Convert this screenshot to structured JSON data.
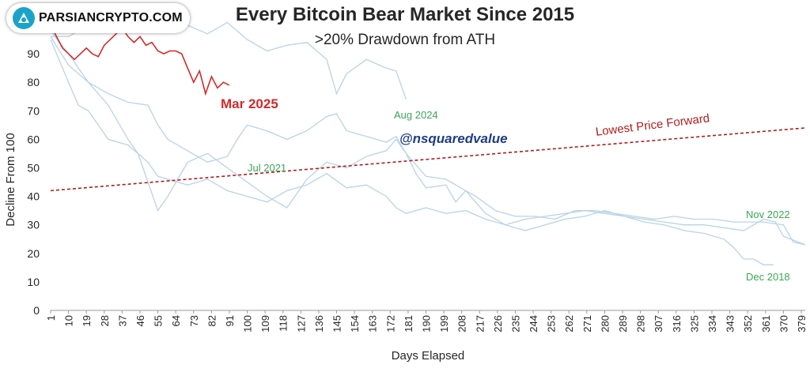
{
  "logo": {
    "text": "PARSIANCRYPTO.COM"
  },
  "chart_data": {
    "type": "line",
    "title": "Every Bitcoin Bear Market Since 2015",
    "subtitle": ">20% Drawdown from ATH",
    "xlabel": "Days Elapsed",
    "ylabel": "Decline From 100",
    "xlim": [
      1,
      381
    ],
    "ylim": [
      0,
      100
    ],
    "yticks": [
      0,
      10,
      20,
      30,
      40,
      50,
      60,
      70,
      80,
      90
    ],
    "xticks": [
      1,
      10,
      19,
      28,
      37,
      46,
      55,
      64,
      73,
      82,
      91,
      100,
      109,
      118,
      127,
      136,
      145,
      154,
      163,
      172,
      181,
      190,
      199,
      208,
      217,
      226,
      235,
      244,
      253,
      262,
      271,
      280,
      289,
      298,
      307,
      316,
      325,
      334,
      343,
      352,
      361,
      370,
      379
    ],
    "grid": false,
    "colors": {
      "history": "#b9d3e6",
      "current": "#d42a2a",
      "trend": "#b01c1c",
      "label_green": "#3aa655",
      "watermark": "#1f3c88"
    },
    "series": [
      {
        "name": "Mar 2025",
        "highlight": true,
        "points": [
          [
            1,
            100
          ],
          [
            4,
            96
          ],
          [
            7,
            92
          ],
          [
            10,
            90
          ],
          [
            13,
            88
          ],
          [
            16,
            90
          ],
          [
            19,
            92
          ],
          [
            22,
            90
          ],
          [
            25,
            89
          ],
          [
            28,
            93
          ],
          [
            31,
            95
          ],
          [
            34,
            97
          ],
          [
            37,
            99
          ],
          [
            40,
            96
          ],
          [
            43,
            94
          ],
          [
            46,
            96
          ],
          [
            49,
            93
          ],
          [
            52,
            94
          ],
          [
            55,
            91
          ],
          [
            58,
            90
          ],
          [
            61,
            91
          ],
          [
            64,
            91
          ],
          [
            67,
            90
          ],
          [
            70,
            85
          ],
          [
            73,
            80
          ],
          [
            76,
            84
          ],
          [
            79,
            76
          ],
          [
            82,
            82
          ],
          [
            85,
            78
          ],
          [
            88,
            80
          ],
          [
            91,
            79
          ]
        ]
      },
      {
        "name": "Aug 2024",
        "points": [
          [
            1,
            96
          ],
          [
            10,
            96
          ],
          [
            20,
            100
          ],
          [
            30,
            104
          ],
          [
            40,
            100
          ],
          [
            50,
            100
          ],
          [
            60,
            104
          ],
          [
            70,
            100
          ],
          [
            80,
            97
          ],
          [
            90,
            101
          ],
          [
            100,
            95
          ],
          [
            110,
            91
          ],
          [
            120,
            93
          ],
          [
            130,
            94
          ],
          [
            140,
            88
          ],
          [
            145,
            76
          ],
          [
            150,
            83
          ],
          [
            160,
            88
          ],
          [
            170,
            85
          ],
          [
            175,
            84
          ],
          [
            180,
            74
          ]
        ]
      },
      {
        "name": "Jul 2021",
        "points": [
          [
            1,
            96
          ],
          [
            10,
            86
          ],
          [
            20,
            80
          ],
          [
            30,
            76
          ],
          [
            40,
            73
          ],
          [
            50,
            72
          ],
          [
            55,
            65
          ],
          [
            60,
            60
          ],
          [
            70,
            56
          ],
          [
            80,
            52
          ],
          [
            90,
            54
          ],
          [
            95,
            60
          ],
          [
            100,
            65
          ],
          [
            110,
            63
          ],
          [
            120,
            60
          ],
          [
            130,
            63
          ],
          [
            140,
            68
          ],
          [
            145,
            69
          ],
          [
            150,
            63
          ],
          [
            160,
            61
          ],
          [
            170,
            59
          ],
          [
            175,
            61
          ],
          [
            180,
            55
          ],
          [
            185,
            48
          ],
          [
            190,
            43
          ],
          [
            200,
            44
          ],
          [
            205,
            38
          ],
          [
            210,
            42
          ],
          [
            215,
            40
          ],
          [
            225,
            35
          ],
          [
            235,
            33
          ],
          [
            245,
            33
          ],
          [
            255,
            32
          ],
          [
            265,
            35
          ],
          [
            275,
            35
          ],
          [
            285,
            34
          ],
          [
            295,
            33
          ],
          [
            305,
            32
          ],
          [
            315,
            33
          ],
          [
            325,
            32
          ],
          [
            335,
            32
          ],
          [
            345,
            31
          ],
          [
            350,
            31
          ],
          [
            360,
            31
          ],
          [
            370,
            30
          ],
          [
            375,
            24
          ],
          [
            381,
            23
          ]
        ]
      },
      {
        "name": "Nov 2022",
        "points": [
          [
            1,
            95
          ],
          [
            10,
            80
          ],
          [
            15,
            72
          ],
          [
            20,
            70
          ],
          [
            30,
            60
          ],
          [
            40,
            58
          ],
          [
            50,
            52
          ],
          [
            55,
            47
          ],
          [
            60,
            46
          ],
          [
            70,
            44
          ],
          [
            80,
            46
          ],
          [
            90,
            42
          ],
          [
            100,
            40
          ],
          [
            110,
            38
          ],
          [
            120,
            42
          ],
          [
            130,
            44
          ],
          [
            140,
            48
          ],
          [
            150,
            43
          ],
          [
            160,
            44
          ],
          [
            170,
            40
          ],
          [
            175,
            36
          ],
          [
            180,
            34
          ],
          [
            190,
            36
          ],
          [
            200,
            34
          ],
          [
            210,
            35
          ],
          [
            220,
            32
          ],
          [
            230,
            30
          ],
          [
            240,
            32
          ],
          [
            250,
            33
          ],
          [
            260,
            34
          ],
          [
            270,
            35
          ],
          [
            280,
            34
          ],
          [
            290,
            33
          ],
          [
            300,
            32
          ],
          [
            310,
            31
          ],
          [
            320,
            30
          ],
          [
            330,
            30
          ],
          [
            340,
            29
          ],
          [
            350,
            28
          ],
          [
            360,
            32
          ],
          [
            366,
            31
          ],
          [
            370,
            26
          ],
          [
            381,
            23
          ]
        ]
      },
      {
        "name": "Dec 2018",
        "points": [
          [
            1,
            98
          ],
          [
            10,
            90
          ],
          [
            20,
            80
          ],
          [
            30,
            72
          ],
          [
            40,
            60
          ],
          [
            45,
            55
          ],
          [
            50,
            45
          ],
          [
            55,
            35
          ],
          [
            60,
            40
          ],
          [
            70,
            52
          ],
          [
            80,
            55
          ],
          [
            90,
            50
          ],
          [
            100,
            45
          ],
          [
            110,
            40
          ],
          [
            120,
            36
          ],
          [
            130,
            46
          ],
          [
            140,
            52
          ],
          [
            150,
            50
          ],
          [
            160,
            54
          ],
          [
            170,
            56
          ],
          [
            175,
            60
          ],
          [
            180,
            55
          ],
          [
            190,
            47
          ],
          [
            200,
            46
          ],
          [
            210,
            42
          ],
          [
            220,
            34
          ],
          [
            230,
            30
          ],
          [
            240,
            28
          ],
          [
            250,
            30
          ],
          [
            260,
            32
          ],
          [
            270,
            33
          ],
          [
            280,
            35
          ],
          [
            290,
            33
          ],
          [
            300,
            31
          ],
          [
            310,
            30
          ],
          [
            320,
            28
          ],
          [
            330,
            27
          ],
          [
            340,
            25
          ],
          [
            345,
            22
          ],
          [
            350,
            18
          ],
          [
            355,
            18
          ],
          [
            360,
            16
          ],
          [
            365,
            16
          ]
        ]
      }
    ],
    "trend": {
      "name": "Lowest Price Forward",
      "from": [
        1,
        42
      ],
      "to": [
        381,
        64
      ]
    }
  },
  "annotations": {
    "mar2025": "Mar 2025",
    "aug2024": "Aug 2024",
    "jul2021": "Jul 2021",
    "nov2022": "Nov 2022",
    "dec2018": "Dec 2018",
    "trend": "Lowest Price Forward",
    "watermark": "@nsquaredvalue"
  }
}
